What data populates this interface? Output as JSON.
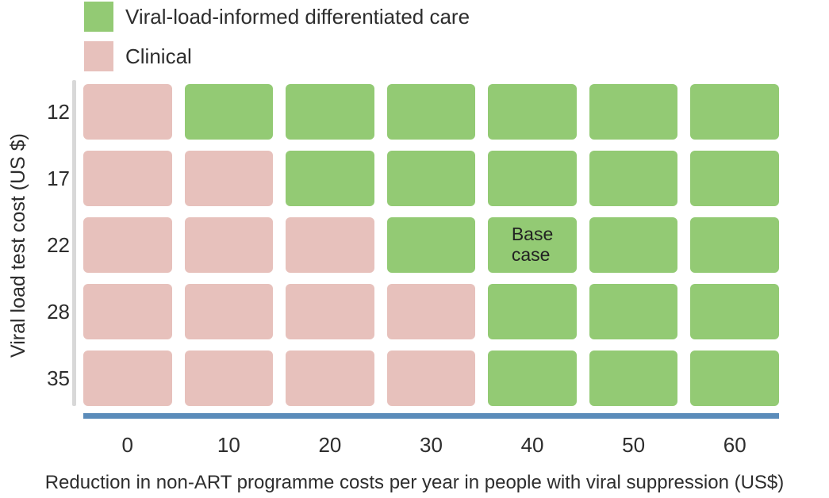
{
  "legend": {
    "items": [
      {
        "key": "vlic",
        "label": "Viral-load-informed differentiated care",
        "color": "#93ca74"
      },
      {
        "key": "clinical",
        "label": "Clinical",
        "color": "#e7c1bc"
      }
    ]
  },
  "chart_data": {
    "type": "heatmap",
    "title": "",
    "xlabel": "Reduction in non-ART programme costs per year in people with viral suppression (US$)",
    "ylabel": "Viral load test cost (US $)",
    "x_categories": [
      "0",
      "10",
      "20",
      "30",
      "40",
      "50",
      "60"
    ],
    "y_categories": [
      "12",
      "17",
      "22",
      "28",
      "35"
    ],
    "legend_position": "top-left",
    "grid": false,
    "cell_values": [
      [
        "clinical",
        "vlic",
        "vlic",
        "vlic",
        "vlic",
        "vlic",
        "vlic"
      ],
      [
        "clinical",
        "clinical",
        "vlic",
        "vlic",
        "vlic",
        "vlic",
        "vlic"
      ],
      [
        "clinical",
        "clinical",
        "clinical",
        "vlic",
        "vlic",
        "vlic",
        "vlic"
      ],
      [
        "clinical",
        "clinical",
        "clinical",
        "clinical",
        "vlic",
        "vlic",
        "vlic"
      ],
      [
        "clinical",
        "clinical",
        "clinical",
        "clinical",
        "vlic",
        "vlic",
        "vlic"
      ]
    ],
    "annotation": {
      "text": "Base case",
      "lines": [
        "Base",
        "case"
      ],
      "row_index": 2,
      "col_index": 4,
      "y_category": "22",
      "x_category": "40"
    },
    "colors": {
      "vlic": "#93ca74",
      "clinical": "#e7c1bc",
      "x_axis_line": "#5b8cba",
      "y_axis_line": "#d8d8d8",
      "text": "#2d2d2d"
    }
  }
}
